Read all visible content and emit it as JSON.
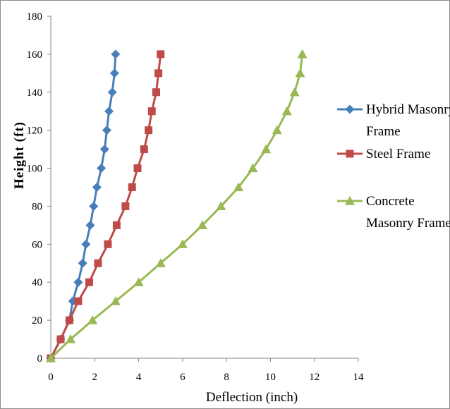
{
  "chart_data": {
    "type": "line",
    "xlabel": "Deflection (inch)",
    "ylabel": "Height (ft)",
    "xlim": [
      0,
      14
    ],
    "ylim": [
      0,
      180
    ],
    "xticks": [
      0,
      2,
      4,
      6,
      8,
      10,
      12,
      14
    ],
    "yticks": [
      0,
      20,
      40,
      60,
      80,
      100,
      120,
      140,
      160,
      180
    ],
    "grid": false,
    "legend_position": "right",
    "series": [
      {
        "name": "Hybrid Masonry Frame",
        "legend_lines": [
          "Hybrid Masonry",
          "Frame"
        ],
        "color": "#4a7ebb",
        "marker": "diamond",
        "points": [
          [
            0,
            0
          ],
          [
            0.45,
            10
          ],
          [
            0.85,
            20
          ],
          [
            1.0,
            30
          ],
          [
            1.25,
            40
          ],
          [
            1.45,
            50
          ],
          [
            1.6,
            60
          ],
          [
            1.8,
            70
          ],
          [
            1.95,
            80
          ],
          [
            2.1,
            90
          ],
          [
            2.3,
            100
          ],
          [
            2.45,
            110
          ],
          [
            2.55,
            120
          ],
          [
            2.65,
            130
          ],
          [
            2.8,
            140
          ],
          [
            2.9,
            150
          ],
          [
            2.95,
            160
          ]
        ]
      },
      {
        "name": "Steel Frame",
        "legend_lines": [
          "Steel Frame"
        ],
        "color": "#be4b48",
        "marker": "square",
        "points": [
          [
            0,
            0
          ],
          [
            0.45,
            10
          ],
          [
            0.85,
            20
          ],
          [
            1.25,
            30
          ],
          [
            1.75,
            40
          ],
          [
            2.15,
            50
          ],
          [
            2.6,
            60
          ],
          [
            3.0,
            70
          ],
          [
            3.4,
            80
          ],
          [
            3.7,
            90
          ],
          [
            3.95,
            100
          ],
          [
            4.25,
            110
          ],
          [
            4.45,
            120
          ],
          [
            4.6,
            130
          ],
          [
            4.8,
            140
          ],
          [
            4.9,
            150
          ],
          [
            5.0,
            160
          ]
        ]
      },
      {
        "name": "Concrete Masonry Frame",
        "legend_lines": [
          "Concrete",
          "Masonry Frame"
        ],
        "color": "#98b954",
        "marker": "triangle",
        "points": [
          [
            0,
            0
          ],
          [
            0.9,
            10
          ],
          [
            1.9,
            20
          ],
          [
            2.95,
            30
          ],
          [
            4.0,
            40
          ],
          [
            5.0,
            50
          ],
          [
            6.0,
            60
          ],
          [
            6.9,
            70
          ],
          [
            7.75,
            80
          ],
          [
            8.55,
            90
          ],
          [
            9.2,
            100
          ],
          [
            9.8,
            110
          ],
          [
            10.3,
            120
          ],
          [
            10.75,
            130
          ],
          [
            11.1,
            140
          ],
          [
            11.35,
            150
          ],
          [
            11.45,
            160
          ]
        ]
      }
    ]
  }
}
